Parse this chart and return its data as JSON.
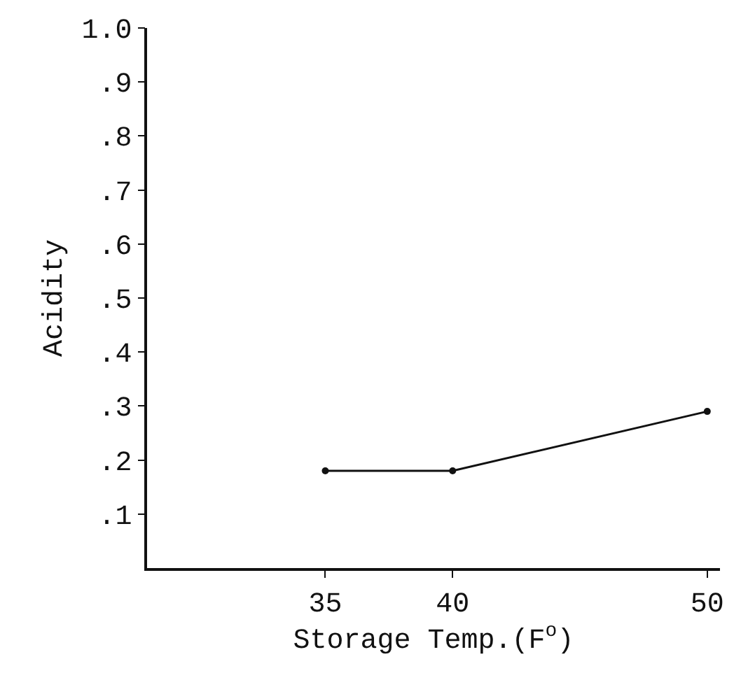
{
  "chart_data": {
    "type": "line",
    "xlabel": "Storage Temp.(F$^{o}$)",
    "ylabel": "Acidity",
    "x": [
      35,
      40,
      50
    ],
    "series": [
      {
        "color": "#111111",
        "values": [
          0.18,
          0.18,
          0.29
        ]
      }
    ],
    "xlim": [
      28,
      50.5
    ],
    "xticks": [
      35,
      40,
      50
    ],
    "ylim": [
      0,
      1.0
    ],
    "yticks": [
      {
        "value": 0.1,
        "label": ".1"
      },
      {
        "value": 0.2,
        "label": ".2"
      },
      {
        "value": 0.3,
        "label": ".3"
      },
      {
        "value": 0.4,
        "label": ".4"
      },
      {
        "value": 0.5,
        "label": ".5"
      },
      {
        "value": 0.6,
        "label": ".6"
      },
      {
        "value": 0.7,
        "label": ".7"
      },
      {
        "value": 0.8,
        "label": ".8"
      },
      {
        "value": 0.9,
        "label": ".9"
      },
      {
        "value": 1.0,
        "label": "1.0"
      }
    ],
    "legend": false,
    "marker": "circle",
    "line_style": "solid"
  }
}
